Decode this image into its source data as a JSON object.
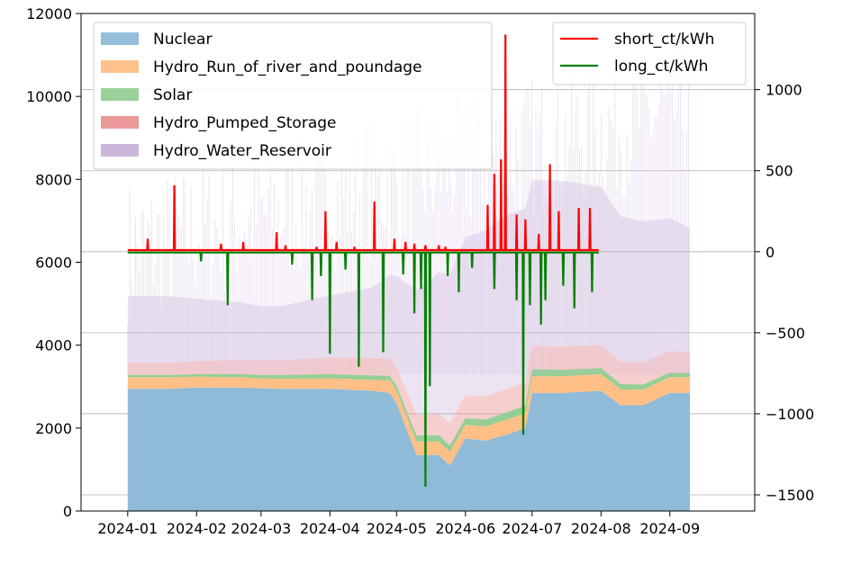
{
  "chart_data": {
    "type": "area",
    "x_ticks": [
      "2024-01",
      "2024-02",
      "2024-03",
      "2024-04",
      "2024-05",
      "2024-06",
      "2024-07",
      "2024-08",
      "2024-09"
    ],
    "x_range": [
      "2024-01-01",
      "2024-09-11"
    ],
    "y_left": {
      "range": [
        0,
        12000
      ],
      "ticks": [
        "0",
        "2000",
        "4000",
        "6000",
        "8000",
        "10000",
        "12000"
      ]
    },
    "y_right": {
      "range": [
        -1600,
        1470
      ],
      "ticks": [
        "-1500",
        "-1000",
        "-500",
        "0",
        "500",
        "1000"
      ]
    },
    "grid": "horizontal lines on right axis",
    "legend_left": {
      "placement": "upper-left",
      "entries": [
        {
          "name": "Nuclear",
          "color": "#8fbbd9"
        },
        {
          "name": "Hydro_Run_of_river_and_poundage",
          "color": "#ffbf86"
        },
        {
          "name": "Solar",
          "color": "#95cf95"
        },
        {
          "name": "Hydro_Pumped_Storage",
          "color": "#ea9293"
        },
        {
          "name": "Hydro_Water_Reservoir",
          "color": "#c9b3d9"
        }
      ]
    },
    "legend_right": {
      "placement": "upper-right",
      "entries": [
        {
          "name": "short_ct/kWh",
          "color": "#ff0000"
        },
        {
          "name": "long_ct/kWh",
          "color": "#008000"
        }
      ]
    },
    "stack_series": {
      "dates": [
        "2024-01-01",
        "2024-01-20",
        "2024-02-01",
        "2024-02-20",
        "2024-03-01",
        "2024-03-10",
        "2024-04-01",
        "2024-04-20",
        "2024-04-28",
        "2024-05-01",
        "2024-05-10",
        "2024-05-20",
        "2024-05-25",
        "2024-06-01",
        "2024-06-10",
        "2024-06-20",
        "2024-06-28",
        "2024-07-01",
        "2024-07-15",
        "2024-08-01",
        "2024-08-10",
        "2024-08-20",
        "2024-09-01",
        "2024-09-10"
      ],
      "Nuclear": [
        2950,
        2950,
        2980,
        2980,
        2960,
        2950,
        2950,
        2900,
        2850,
        2600,
        1350,
        1350,
        1100,
        1750,
        1700,
        1850,
        2000,
        2850,
        2850,
        2900,
        2550,
        2550,
        2850,
        2850
      ],
      "Hydro_Run_of_river_and_poundage": [
        280,
        280,
        260,
        250,
        240,
        240,
        250,
        260,
        300,
        300,
        330,
        330,
        330,
        330,
        340,
        360,
        360,
        400,
        400,
        400,
        380,
        380,
        380,
        380
      ],
      "Solar": [
        50,
        50,
        60,
        70,
        80,
        90,
        100,
        110,
        110,
        120,
        140,
        150,
        150,
        160,
        170,
        180,
        180,
        170,
        160,
        150,
        130,
        120,
        110,
        100
      ],
      "Hydro_Pumped_Storage": [
        300,
        300,
        320,
        340,
        360,
        360,
        400,
        420,
        420,
        450,
        500,
        520,
        540,
        560,
        560,
        560,
        560,
        560,
        560,
        560,
        540,
        540,
        520,
        500
      ],
      "Hydro_Water_Reservoir": [
        1600,
        1600,
        1500,
        1400,
        1300,
        1300,
        1500,
        1700,
        2000,
        2200,
        3000,
        3400,
        3600,
        3800,
        4000,
        4200,
        4200,
        4000,
        4000,
        3800,
        3500,
        3400,
        3200,
        3000
      ]
    },
    "short_ct_kWh": {
      "baseline": 10,
      "spikes": [
        [
          "2024-01-10",
          80
        ],
        [
          "2024-01-22",
          410
        ],
        [
          "2024-02-12",
          50
        ],
        [
          "2024-02-22",
          60
        ],
        [
          "2024-03-08",
          120
        ],
        [
          "2024-03-12",
          40
        ],
        [
          "2024-03-26",
          30
        ],
        [
          "2024-03-30",
          250
        ],
        [
          "2024-04-04",
          60
        ],
        [
          "2024-04-12",
          30
        ],
        [
          "2024-04-21",
          310
        ],
        [
          "2024-04-30",
          80
        ],
        [
          "2024-05-05",
          60
        ],
        [
          "2024-05-09",
          50
        ],
        [
          "2024-05-14",
          40
        ],
        [
          "2024-05-20",
          40
        ],
        [
          "2024-05-23",
          30
        ],
        [
          "2024-06-11",
          290
        ],
        [
          "2024-06-14",
          480
        ],
        [
          "2024-06-17",
          570
        ],
        [
          "2024-06-19",
          1340
        ],
        [
          "2024-06-24",
          230
        ],
        [
          "2024-06-28",
          200
        ],
        [
          "2024-07-04",
          110
        ],
        [
          "2024-07-09",
          540
        ],
        [
          "2024-07-13",
          250
        ],
        [
          "2024-07-22",
          270
        ],
        [
          "2024-07-27",
          270
        ]
      ]
    },
    "long_ct_kWh": {
      "baseline": -5,
      "spikes": [
        [
          "2024-02-03",
          -60
        ],
        [
          "2024-02-15",
          -330
        ],
        [
          "2024-03-15",
          -80
        ],
        [
          "2024-03-24",
          -300
        ],
        [
          "2024-03-28",
          -150
        ],
        [
          "2024-04-01",
          -630
        ],
        [
          "2024-04-08",
          -110
        ],
        [
          "2024-04-14",
          -710
        ],
        [
          "2024-04-25",
          -620
        ],
        [
          "2024-05-04",
          -140
        ],
        [
          "2024-05-09",
          -380
        ],
        [
          "2024-05-12",
          -230
        ],
        [
          "2024-05-14",
          -1450
        ],
        [
          "2024-05-16",
          -830
        ],
        [
          "2024-05-24",
          -150
        ],
        [
          "2024-05-29",
          -250
        ],
        [
          "2024-06-04",
          -100
        ],
        [
          "2024-06-14",
          -230
        ],
        [
          "2024-06-24",
          -300
        ],
        [
          "2024-06-27",
          -1130
        ],
        [
          "2024-06-30",
          -330
        ],
        [
          "2024-07-05",
          -450
        ],
        [
          "2024-07-07",
          -300
        ],
        [
          "2024-07-15",
          -210
        ],
        [
          "2024-07-20",
          -350
        ],
        [
          "2024-07-28",
          -250
        ]
      ]
    }
  }
}
